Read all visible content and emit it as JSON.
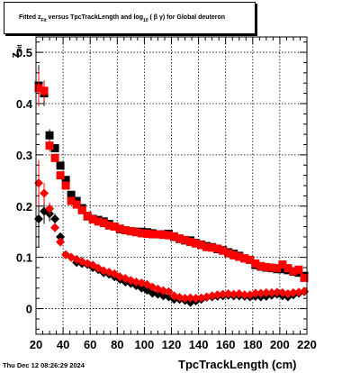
{
  "title": {
    "prefix": "Fitted  z",
    "sub": "Fit",
    "middle": "   versus TpcTrackLength and log",
    "sub2": "10",
    "suffix": "  ( β γ) for Global deuteron"
  },
  "footer": {
    "date": "Thu Dec 12 08:26:29 2024"
  },
  "axes": {
    "xlabel": "TpcTrackLength (cm)",
    "ylabel_main": "z",
    "ylabel_sub": "Fit"
  },
  "colors": {
    "black_series": "#000000",
    "red_series": "#ff0000",
    "frame": "#000000",
    "grid": "#000000"
  },
  "chart_data": {
    "type": "scatter",
    "title": "Fitted z_Fit versus TpcTrackLength and log10 (βγ) for Global deuteron",
    "xlabel": "TpcTrackLength (cm)",
    "ylabel": "z_Fit",
    "xlim": [
      20,
      220
    ],
    "ylim": [
      -0.05,
      0.53
    ],
    "xticks": [
      20,
      40,
      60,
      80,
      100,
      120,
      140,
      160,
      180,
      200,
      220
    ],
    "yticks": [
      0,
      0.1,
      0.2,
      0.3,
      0.4,
      0.5
    ],
    "grid": true,
    "series": [
      {
        "color": "#000000",
        "marker": "square",
        "x": [
          22,
          26,
          30,
          34,
          38,
          42,
          46,
          50,
          54,
          58,
          62,
          66,
          70,
          74,
          78,
          82,
          86,
          90,
          94,
          98,
          102,
          106,
          110,
          114,
          118,
          122,
          126,
          130,
          134,
          138,
          142,
          146,
          150,
          154,
          158,
          162,
          166,
          170,
          174,
          178,
          182,
          186,
          190,
          194,
          198,
          202,
          206,
          210,
          214,
          218
        ],
        "y": [
          0.435,
          0.42,
          0.338,
          0.313,
          0.279,
          0.251,
          0.222,
          0.21,
          0.196,
          0.18,
          0.175,
          0.173,
          0.17,
          0.165,
          0.16,
          0.155,
          0.153,
          0.151,
          0.15,
          0.15,
          0.149,
          0.147,
          0.145,
          0.145,
          0.146,
          0.14,
          0.136,
          0.133,
          0.133,
          0.128,
          0.125,
          0.122,
          0.12,
          0.116,
          0.114,
          0.11,
          0.107,
          0.103,
          0.098,
          0.095,
          0.085,
          0.082,
          0.08,
          0.079,
          0.077,
          0.077,
          0.075,
          0.072,
          0.07,
          0.064
        ],
        "yerr": [
          0.04,
          0.025,
          0.012,
          0.008,
          0.006,
          0.005,
          0.004,
          0.004,
          0.004,
          0.004,
          0.003,
          0.003,
          0.003,
          0.003,
          0.003,
          0.003,
          0.003,
          0.003,
          0.003,
          0.003,
          0.003,
          0.003,
          0.003,
          0.003,
          0.003,
          0.003,
          0.003,
          0.003,
          0.003,
          0.003,
          0.003,
          0.003,
          0.003,
          0.003,
          0.003,
          0.003,
          0.003,
          0.003,
          0.003,
          0.003,
          0.003,
          0.003,
          0.003,
          0.003,
          0.003,
          0.003,
          0.003,
          0.003,
          0.003,
          0.003
        ]
      },
      {
        "color": "#ff0000",
        "marker": "square",
        "x": [
          22,
          26,
          30,
          34,
          38,
          42,
          46,
          50,
          54,
          58,
          62,
          66,
          70,
          74,
          78,
          82,
          86,
          90,
          94,
          98,
          102,
          106,
          110,
          114,
          118,
          122,
          126,
          130,
          134,
          138,
          142,
          146,
          150,
          154,
          158,
          162,
          166,
          170,
          174,
          178,
          182,
          186,
          190,
          194,
          198,
          202,
          206,
          210,
          214,
          218
        ],
        "y": [
          0.43,
          0.425,
          0.318,
          0.294,
          0.26,
          0.24,
          0.21,
          0.203,
          0.192,
          0.181,
          0.174,
          0.17,
          0.167,
          0.162,
          0.16,
          0.156,
          0.153,
          0.151,
          0.149,
          0.147,
          0.146,
          0.145,
          0.145,
          0.144,
          0.143,
          0.141,
          0.137,
          0.134,
          0.13,
          0.127,
          0.124,
          0.12,
          0.119,
          0.117,
          0.113,
          0.108,
          0.104,
          0.101,
          0.098,
          0.095,
          0.088,
          0.083,
          0.081,
          0.08,
          0.079,
          0.086,
          0.079,
          0.073,
          0.076,
          0.06
        ],
        "yerr": [
          0.035,
          0.02,
          0.012,
          0.008,
          0.006,
          0.005,
          0.004,
          0.004,
          0.004,
          0.004,
          0.003,
          0.003,
          0.003,
          0.003,
          0.003,
          0.003,
          0.003,
          0.003,
          0.003,
          0.003,
          0.003,
          0.003,
          0.003,
          0.003,
          0.003,
          0.003,
          0.003,
          0.003,
          0.003,
          0.003,
          0.003,
          0.003,
          0.003,
          0.003,
          0.003,
          0.003,
          0.003,
          0.003,
          0.003,
          0.003,
          0.003,
          0.003,
          0.003,
          0.003,
          0.003,
          0.003,
          0.003,
          0.003,
          0.003,
          0.003
        ]
      },
      {
        "color": "#000000",
        "marker": "diamond",
        "x": [
          22,
          26,
          30,
          34,
          38,
          42,
          46,
          50,
          54,
          58,
          62,
          66,
          70,
          74,
          78,
          82,
          86,
          90,
          94,
          98,
          102,
          106,
          110,
          114,
          118,
          122,
          126,
          130,
          134,
          138,
          142,
          146,
          150,
          154,
          158,
          162,
          166,
          170,
          174,
          178,
          182,
          186,
          190,
          194,
          198,
          202,
          206,
          210,
          214,
          218
        ],
        "y": [
          0.175,
          0.19,
          0.185,
          0.175,
          0.14,
          0.105,
          0.1,
          0.09,
          0.088,
          0.086,
          0.08,
          0.076,
          0.07,
          0.067,
          0.062,
          0.057,
          0.052,
          0.049,
          0.045,
          0.04,
          0.036,
          0.03,
          0.028,
          0.025,
          0.023,
          0.018,
          0.018,
          0.016,
          0.012,
          0.015,
          0.018,
          0.022,
          0.023,
          0.024,
          0.025,
          0.026,
          0.025,
          0.025,
          0.024,
          0.023,
          0.024,
          0.023,
          0.024,
          0.026,
          0.028,
          0.025,
          0.023,
          0.027,
          0.03,
          0.033
        ],
        "yerr": [
          0.055,
          0.025,
          0.015,
          0.01,
          0.007,
          0.005,
          0.004,
          0.004,
          0.004,
          0.003,
          0.003,
          0.003,
          0.003,
          0.003,
          0.003,
          0.003,
          0.003,
          0.003,
          0.003,
          0.003,
          0.003,
          0.003,
          0.003,
          0.003,
          0.003,
          0.003,
          0.003,
          0.003,
          0.003,
          0.003,
          0.003,
          0.003,
          0.003,
          0.003,
          0.003,
          0.003,
          0.003,
          0.003,
          0.003,
          0.003,
          0.003,
          0.003,
          0.003,
          0.003,
          0.003,
          0.003,
          0.003,
          0.003,
          0.003,
          0.003
        ]
      },
      {
        "color": "#ff0000",
        "marker": "diamond",
        "x": [
          22,
          26,
          30,
          34,
          38,
          42,
          46,
          50,
          54,
          58,
          62,
          66,
          70,
          74,
          78,
          82,
          86,
          90,
          94,
          98,
          102,
          106,
          110,
          114,
          118,
          122,
          126,
          130,
          134,
          138,
          142,
          146,
          150,
          154,
          158,
          162,
          166,
          170,
          174,
          178,
          182,
          186,
          190,
          194,
          198,
          202,
          206,
          210,
          214,
          218
        ],
        "y": [
          0.245,
          0.225,
          0.195,
          0.158,
          0.13,
          0.105,
          0.1,
          0.096,
          0.092,
          0.088,
          0.085,
          0.079,
          0.074,
          0.071,
          0.068,
          0.062,
          0.059,
          0.055,
          0.052,
          0.05,
          0.047,
          0.042,
          0.038,
          0.035,
          0.033,
          0.025,
          0.022,
          0.02,
          0.021,
          0.02,
          0.021,
          0.023,
          0.025,
          0.027,
          0.028,
          0.029,
          0.028,
          0.029,
          0.027,
          0.027,
          0.03,
          0.03,
          0.031,
          0.031,
          0.032,
          0.031,
          0.029,
          0.031,
          0.032,
          0.034
        ],
        "yerr": [
          0.045,
          0.02,
          0.012,
          0.009,
          0.006,
          0.005,
          0.004,
          0.004,
          0.004,
          0.003,
          0.003,
          0.003,
          0.003,
          0.003,
          0.003,
          0.003,
          0.003,
          0.003,
          0.003,
          0.003,
          0.003,
          0.003,
          0.003,
          0.003,
          0.003,
          0.003,
          0.003,
          0.003,
          0.003,
          0.003,
          0.003,
          0.003,
          0.003,
          0.003,
          0.003,
          0.003,
          0.003,
          0.003,
          0.003,
          0.003,
          0.003,
          0.003,
          0.003,
          0.003,
          0.003,
          0.003,
          0.003,
          0.003,
          0.003,
          0.003
        ]
      }
    ]
  }
}
